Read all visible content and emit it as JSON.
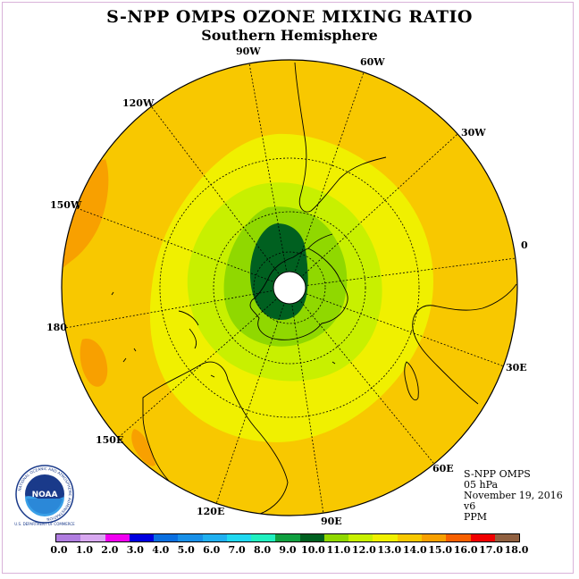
{
  "title": "S-NPP OMPS OZONE MIXING RATIO",
  "subtitle": "Southern Hemisphere",
  "map": {
    "projection": "polar stereographic",
    "hemisphere": "south",
    "longitude_labels": [
      "90W",
      "60W",
      "30W",
      "0",
      "30E",
      "60E",
      "90E",
      "120E",
      "150E",
      "180",
      "150W",
      "120W"
    ]
  },
  "info": {
    "instrument": "S-NPP OMPS",
    "level": "05 hPa",
    "date": "November 19, 2016",
    "version": "v6",
    "units": "PPM"
  },
  "logo": {
    "text": "NOAA",
    "ring_text": "NATIONAL OCEANIC AND ATMOSPHERIC ADMINISTRATION",
    "bottom_text": "U.S. DEPARTMENT OF COMMERCE"
  },
  "colorbar": {
    "ticks": [
      "0.0",
      "1.0",
      "2.0",
      "3.0",
      "4.0",
      "5.0",
      "6.0",
      "7.0",
      "8.0",
      "9.0",
      "10.0",
      "11.0",
      "12.0",
      "13.0",
      "14.0",
      "15.0",
      "16.0",
      "17.0",
      "18.0"
    ],
    "colors": [
      "#b07de0",
      "#d8a8f0",
      "#f000f0",
      "#0000e0",
      "#0a6fe0",
      "#1890e8",
      "#20b0f0",
      "#20d8f0",
      "#20f0c0",
      "#10a040",
      "#006020",
      "#90d800",
      "#c8f000",
      "#f0f000",
      "#f8c800",
      "#f8a000",
      "#f86000",
      "#f00000",
      "#906040"
    ]
  },
  "chart_data": {
    "type": "heatmap",
    "title": "S-NPP OMPS OZONE MIXING RATIO",
    "subtitle": "Southern Hemisphere",
    "units": "PPM",
    "levels": [
      0,
      1,
      2,
      3,
      4,
      5,
      6,
      7,
      8,
      9,
      10,
      11,
      12,
      13,
      14,
      15,
      16,
      17,
      18
    ],
    "regions": [
      {
        "name": "core minimum over Antarctic/South America sector",
        "value_range": [
          9,
          10
        ]
      },
      {
        "name": "inner ring",
        "value_range": [
          10,
          11
        ]
      },
      {
        "name": "ring",
        "value_range": [
          11,
          12
        ]
      },
      {
        "name": "ring",
        "value_range": [
          12,
          13
        ]
      },
      {
        "name": "outer background",
        "value_range": [
          13,
          14
        ]
      },
      {
        "name": "local maxima (150W and 180/150E sectors)",
        "value_range": [
          14,
          15
        ]
      }
    ]
  }
}
